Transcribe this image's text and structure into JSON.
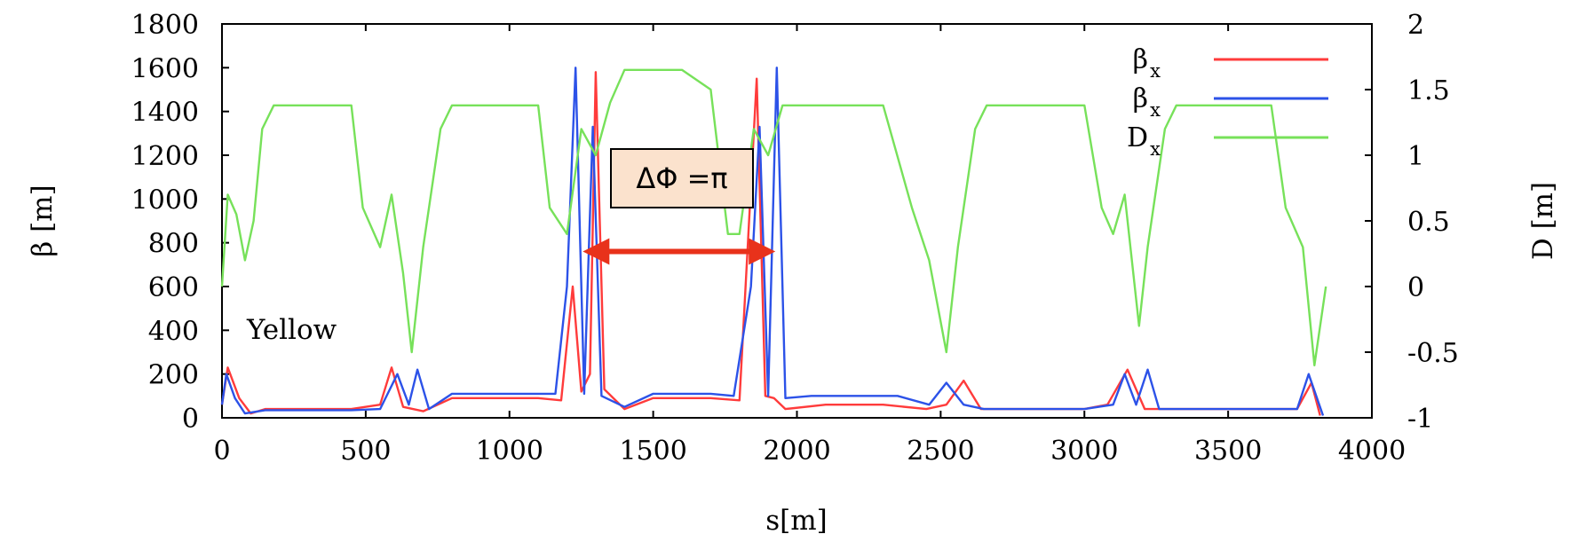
{
  "chart_data": {
    "type": "line",
    "xlabel": "s[m]",
    "ylabel": "β [m]",
    "y2label": "D [m]",
    "xlim": [
      0,
      4000
    ],
    "ylim": [
      0,
      1800
    ],
    "y2lim": [
      -1,
      2
    ],
    "x_ticks": [
      0,
      500,
      1000,
      1500,
      2000,
      2500,
      3000,
      3500,
      4000
    ],
    "y_ticks": [
      0,
      200,
      400,
      600,
      800,
      1000,
      1200,
      1400,
      1600,
      1800
    ],
    "y2_ticks": [
      -1,
      -0.5,
      0,
      0.5,
      1,
      1.5,
      2
    ],
    "y2_tick_labels": [
      "-1",
      "-0.5",
      "0",
      "0.5",
      "1",
      "1.5",
      "2"
    ],
    "grid": false,
    "legend_position": "top-right",
    "text_label": "Yellow",
    "annotation": {
      "text": "ΔΦ =π",
      "from_s": 1255,
      "to_s": 1925,
      "at_beta": 760,
      "arrow_color": "#e8321b"
    },
    "series": [
      {
        "name": "β",
        "subscript": "x",
        "color": "#ff3b3b",
        "axis": "left",
        "points": [
          [
            0,
            60
          ],
          [
            20,
            230
          ],
          [
            60,
            90
          ],
          [
            100,
            20
          ],
          [
            150,
            40
          ],
          [
            250,
            40
          ],
          [
            350,
            40
          ],
          [
            450,
            40
          ],
          [
            550,
            60
          ],
          [
            590,
            230
          ],
          [
            630,
            50
          ],
          [
            700,
            30
          ],
          [
            800,
            90
          ],
          [
            900,
            90
          ],
          [
            1000,
            90
          ],
          [
            1100,
            90
          ],
          [
            1180,
            80
          ],
          [
            1220,
            600
          ],
          [
            1250,
            120
          ],
          [
            1280,
            200
          ],
          [
            1300,
            1580
          ],
          [
            1330,
            130
          ],
          [
            1400,
            40
          ],
          [
            1500,
            90
          ],
          [
            1600,
            90
          ],
          [
            1700,
            90
          ],
          [
            1800,
            80
          ],
          [
            1860,
            1550
          ],
          [
            1890,
            100
          ],
          [
            1920,
            90
          ],
          [
            1960,
            40
          ],
          [
            2100,
            60
          ],
          [
            2300,
            60
          ],
          [
            2450,
            40
          ],
          [
            2520,
            60
          ],
          [
            2580,
            170
          ],
          [
            2640,
            40
          ],
          [
            2800,
            40
          ],
          [
            3000,
            40
          ],
          [
            3080,
            60
          ],
          [
            3150,
            220
          ],
          [
            3210,
            40
          ],
          [
            3400,
            40
          ],
          [
            3600,
            40
          ],
          [
            3740,
            40
          ],
          [
            3790,
            160
          ],
          [
            3820,
            10
          ]
        ]
      },
      {
        "name": "β",
        "subscript": "x",
        "color": "#2c52e8",
        "axis": "left",
        "points": [
          [
            0,
            60
          ],
          [
            15,
            200
          ],
          [
            45,
            90
          ],
          [
            80,
            20
          ],
          [
            150,
            35
          ],
          [
            250,
            35
          ],
          [
            350,
            35
          ],
          [
            450,
            35
          ],
          [
            550,
            40
          ],
          [
            610,
            200
          ],
          [
            650,
            60
          ],
          [
            680,
            220
          ],
          [
            720,
            40
          ],
          [
            800,
            110
          ],
          [
            900,
            110
          ],
          [
            1000,
            110
          ],
          [
            1100,
            110
          ],
          [
            1160,
            110
          ],
          [
            1200,
            600
          ],
          [
            1230,
            1600
          ],
          [
            1260,
            110
          ],
          [
            1290,
            1330
          ],
          [
            1320,
            100
          ],
          [
            1400,
            50
          ],
          [
            1500,
            110
          ],
          [
            1600,
            110
          ],
          [
            1700,
            110
          ],
          [
            1780,
            100
          ],
          [
            1840,
            600
          ],
          [
            1870,
            1330
          ],
          [
            1900,
            100
          ],
          [
            1930,
            1600
          ],
          [
            1960,
            90
          ],
          [
            2050,
            100
          ],
          [
            2200,
            100
          ],
          [
            2350,
            100
          ],
          [
            2460,
            60
          ],
          [
            2520,
            160
          ],
          [
            2580,
            60
          ],
          [
            2650,
            40
          ],
          [
            2800,
            40
          ],
          [
            3000,
            40
          ],
          [
            3100,
            60
          ],
          [
            3140,
            200
          ],
          [
            3180,
            60
          ],
          [
            3220,
            220
          ],
          [
            3260,
            40
          ],
          [
            3400,
            40
          ],
          [
            3600,
            40
          ],
          [
            3740,
            40
          ],
          [
            3780,
            200
          ],
          [
            3830,
            10
          ]
        ]
      },
      {
        "name": "D",
        "subscript": "x",
        "color": "#77e15a",
        "axis": "right",
        "points": [
          [
            0,
            0.0
          ],
          [
            20,
            0.7
          ],
          [
            50,
            0.55
          ],
          [
            80,
            0.2
          ],
          [
            110,
            0.5
          ],
          [
            140,
            1.2
          ],
          [
            180,
            1.38
          ],
          [
            300,
            1.38
          ],
          [
            450,
            1.38
          ],
          [
            490,
            0.6
          ],
          [
            550,
            0.3
          ],
          [
            590,
            0.7
          ],
          [
            630,
            0.1
          ],
          [
            660,
            -0.5
          ],
          [
            700,
            0.3
          ],
          [
            760,
            1.2
          ],
          [
            800,
            1.38
          ],
          [
            950,
            1.38
          ],
          [
            1100,
            1.38
          ],
          [
            1140,
            0.6
          ],
          [
            1200,
            0.4
          ],
          [
            1250,
            1.2
          ],
          [
            1300,
            1.0
          ],
          [
            1350,
            1.4
          ],
          [
            1400,
            1.65
          ],
          [
            1500,
            1.65
          ],
          [
            1600,
            1.65
          ],
          [
            1700,
            1.5
          ],
          [
            1760,
            0.4
          ],
          [
            1800,
            0.4
          ],
          [
            1850,
            1.2
          ],
          [
            1900,
            1.0
          ],
          [
            1950,
            1.38
          ],
          [
            2100,
            1.38
          ],
          [
            2300,
            1.38
          ],
          [
            2400,
            0.6
          ],
          [
            2460,
            0.2
          ],
          [
            2520,
            -0.5
          ],
          [
            2560,
            0.3
          ],
          [
            2620,
            1.2
          ],
          [
            2660,
            1.38
          ],
          [
            2850,
            1.38
          ],
          [
            3000,
            1.38
          ],
          [
            3060,
            0.6
          ],
          [
            3100,
            0.4
          ],
          [
            3140,
            0.7
          ],
          [
            3190,
            -0.3
          ],
          [
            3220,
            0.3
          ],
          [
            3280,
            1.2
          ],
          [
            3320,
            1.38
          ],
          [
            3500,
            1.38
          ],
          [
            3650,
            1.38
          ],
          [
            3700,
            0.6
          ],
          [
            3760,
            0.3
          ],
          [
            3800,
            -0.6
          ],
          [
            3840,
            0.0
          ]
        ]
      }
    ]
  }
}
